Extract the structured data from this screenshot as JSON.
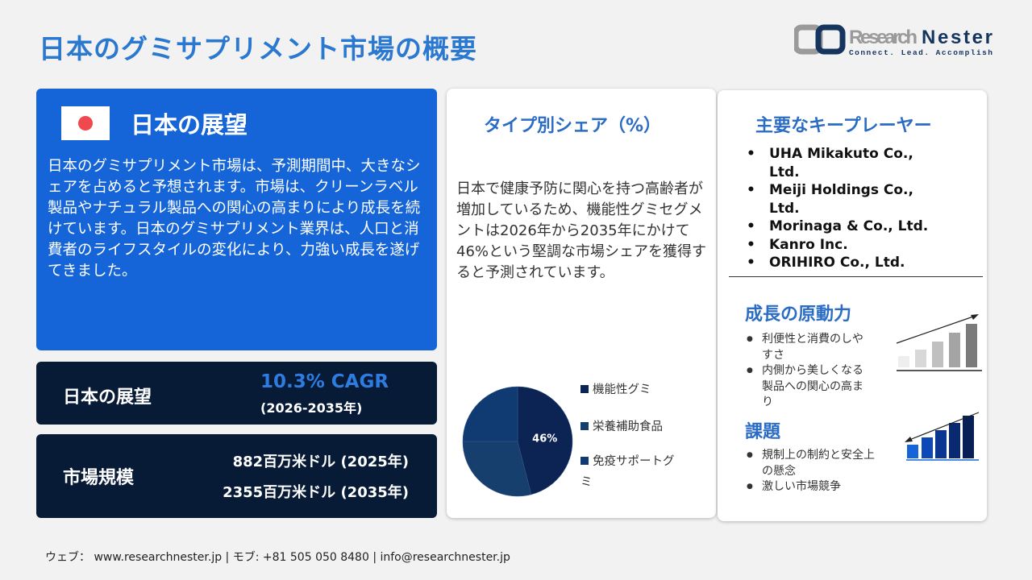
{
  "title": "日本のグミサプリメント市場の概要",
  "logo": {
    "name": "Research Nester",
    "tagline": "Connect. Lead. Accomplish"
  },
  "outlook": {
    "heading": "日本の展望",
    "text": "日本のグミサプリメント市場は、予測期間中、大きなシェアを占めると予想されます。市場は、クリーンラベル製品やナチュラル製品への関心の高まりにより成長を続けています。日本のグミサプリメント業界は、人口と消費者のライフスタイルの変化により、力強い成長を遂げてきました。"
  },
  "cagr": {
    "label": "日本の展望",
    "value": "10.3% CAGR",
    "period": "(2026-2035年)"
  },
  "market_size": {
    "label": "市場規模",
    "value_2025": "882百万米ドル (2025年)",
    "value_2035": "2355百万米ドル (2035年)"
  },
  "type_share": {
    "heading": "タイプ別シェア（%）",
    "text": "日本で健康予防に関心を持つ高齢者が増加しているため、機能性グミセグメントは2026年から2035年にかけて46%という堅調な市場シェアを獲得すると予測されています。"
  },
  "chart_data": {
    "type": "pie",
    "categories": [
      "機能性グミ",
      "栄養補助食品",
      "免疫サポートグミ"
    ],
    "values": [
      46,
      29,
      25
    ],
    "data_labels": [
      "46%",
      "",
      ""
    ],
    "colors": [
      "#0b2454",
      "#173f6e",
      "#0f3a72"
    ],
    "legend_placement": "right"
  },
  "key_players": {
    "heading": "主要なキープレーヤー",
    "items": [
      "UHA Mikakuto Co., Ltd.",
      "Meiji Holdings Co., Ltd.",
      "Morinaga & Co., Ltd.",
      "Kanro Inc.",
      "ORIHIRO Co., Ltd."
    ]
  },
  "drivers": {
    "heading": "成長の原動力",
    "items": [
      "利便性と消費のしやすさ",
      "内側から美しくなる製品への関心の高まり"
    ]
  },
  "challenges": {
    "heading": "課題",
    "items": [
      "規制上の制約と安全上の懸念",
      "激しい市場競争"
    ]
  },
  "footer": "ウェブ：  www.researchnester.jp  | モブ: +81 505 050 8480 | info@researchnester.jp",
  "colors": {
    "accent": "#2b78d0",
    "panel_blue": "#1565d8",
    "panel_dark": "#071a36"
  }
}
